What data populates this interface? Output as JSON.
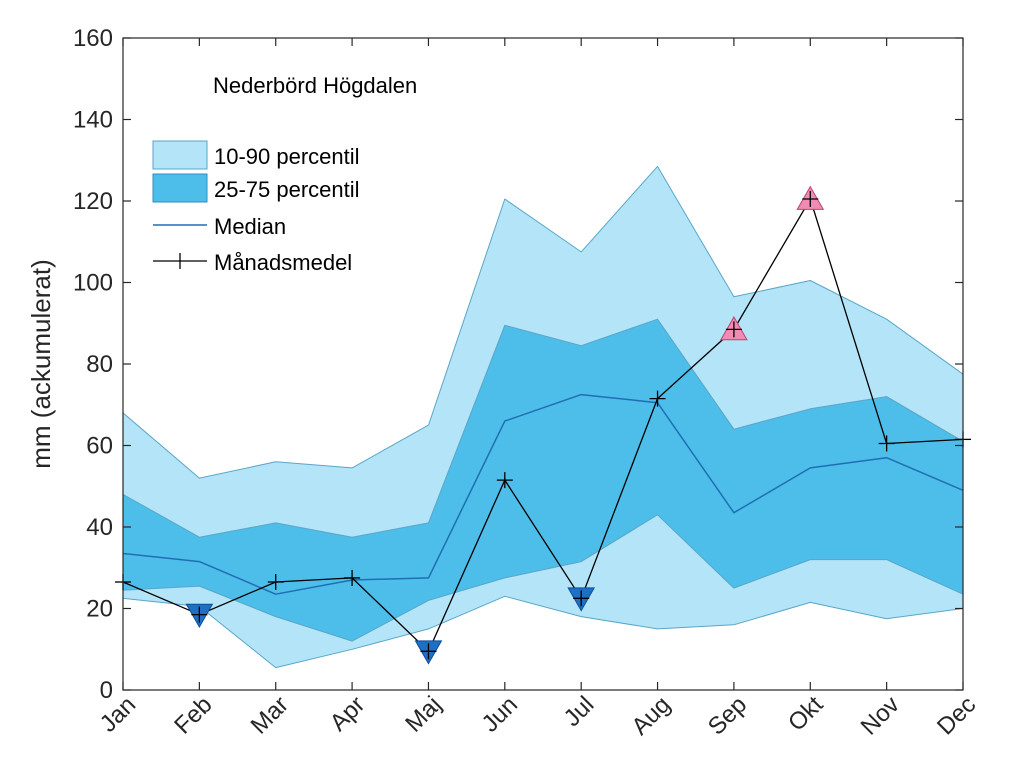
{
  "chart_data": {
    "type": "area",
    "title": "Nederbörd Högdalen",
    "xlabel": "",
    "ylabel": "mm (ackumulerat)",
    "ylim": [
      0,
      160
    ],
    "yticks": [
      0,
      20,
      40,
      60,
      80,
      100,
      120,
      140,
      160
    ],
    "categories": [
      "Jan",
      "Feb",
      "Mar",
      "Apr",
      "Maj",
      "Jun",
      "Jul",
      "Aug",
      "Sep",
      "Okt",
      "Nov",
      "Dec"
    ],
    "bands": [
      {
        "name": "10-90 percentil",
        "color": "#b3e4f8",
        "lower": [
          22.5,
          20.5,
          5.5,
          10,
          15,
          23,
          18,
          15,
          16,
          21.5,
          17.5,
          20
        ],
        "upper": [
          68,
          52,
          56,
          54.5,
          65,
          120.5,
          107.5,
          128.5,
          96.5,
          100.5,
          91,
          77.5
        ]
      },
      {
        "name": "25-75 percentil",
        "color": "#4dbde9",
        "lower": [
          24.5,
          25.5,
          18,
          12,
          22,
          27.5,
          31.5,
          43,
          25,
          32,
          32,
          23.5
        ],
        "upper": [
          48,
          37.5,
          41,
          37.5,
          41,
          89.5,
          84.5,
          91,
          64,
          69,
          72,
          61
        ]
      }
    ],
    "series": [
      {
        "name": "Median",
        "color": "#1f6fb4",
        "values": [
          33.5,
          31.5,
          23.5,
          27,
          27.5,
          66,
          72.5,
          70.5,
          43.5,
          54.5,
          57,
          49
        ]
      },
      {
        "name": "Månadsmedel",
        "color": "#000000",
        "marker": "+",
        "values": [
          26.5,
          18.5,
          26.5,
          27.5,
          9.5,
          51.5,
          22.5,
          71.5,
          88.5,
          120.5,
          60.5,
          61.5
        ]
      }
    ],
    "markers": [
      {
        "category": "Feb",
        "value": 18.5,
        "shape": "triangle-down",
        "color": "#1f6fc5"
      },
      {
        "category": "Maj",
        "value": 9.5,
        "shape": "triangle-down",
        "color": "#1f6fc5"
      },
      {
        "category": "Jul",
        "value": 22.5,
        "shape": "triangle-down",
        "color": "#1f6fc5"
      },
      {
        "category": "Sep",
        "value": 88.5,
        "shape": "triangle-up",
        "color": "#f08cb4"
      },
      {
        "category": "Okt",
        "value": 120.5,
        "shape": "triangle-up",
        "color": "#f08cb4"
      }
    ],
    "legend": {
      "placement": "top-left",
      "items": [
        "10-90 percentil",
        "25-75 percentil",
        "Median",
        "Månadsmedel"
      ]
    }
  }
}
